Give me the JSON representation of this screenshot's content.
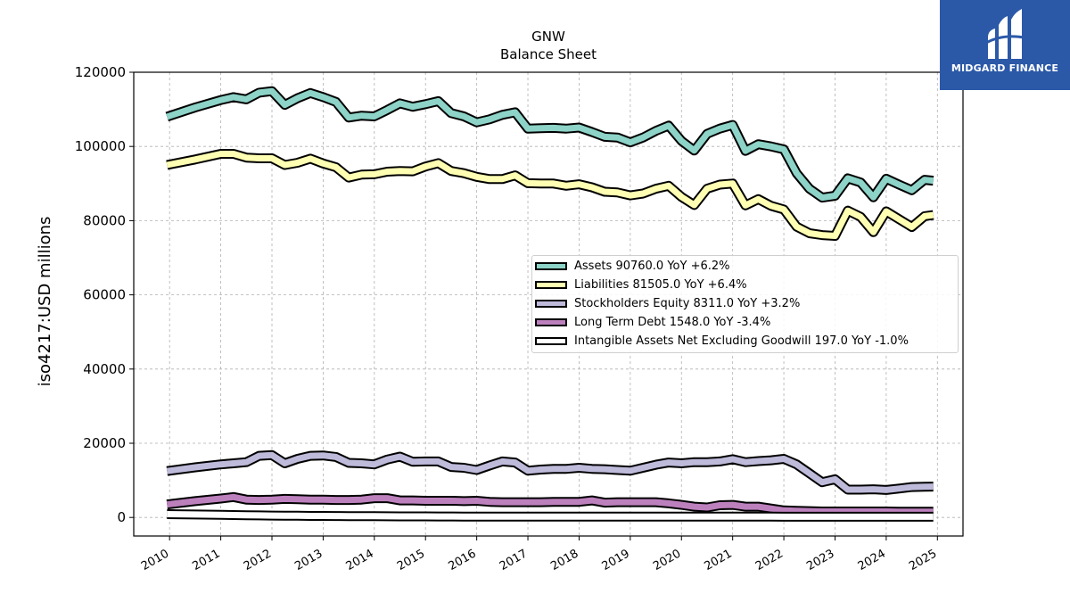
{
  "chart_data": {
    "type": "line",
    "title": "GNW",
    "subtitle": "Balance  Sheet",
    "ylabel": "iso4217:USD  millions",
    "xlabel": "",
    "xlim": [
      2009.3,
      2025.5
    ],
    "ylim": [
      -5000,
      120000
    ],
    "x_ticks": [
      2010,
      2011,
      2012,
      2013,
      2014,
      2015,
      2016,
      2017,
      2018,
      2019,
      2020,
      2021,
      2022,
      2023,
      2024,
      2025
    ],
    "y_ticks": [
      0,
      20000,
      40000,
      60000,
      80000,
      100000,
      120000
    ],
    "grid": true,
    "legend_position": "center-right",
    "x": [
      2009.95,
      2010.5,
      2011.0,
      2011.25,
      2011.5,
      2011.75,
      2012.0,
      2012.25,
      2012.5,
      2012.75,
      2013.0,
      2013.25,
      2013.5,
      2013.75,
      2014.0,
      2014.25,
      2014.5,
      2014.75,
      2015.0,
      2015.25,
      2015.5,
      2015.75,
      2016.0,
      2016.25,
      2016.5,
      2016.75,
      2017.0,
      2017.25,
      2017.5,
      2017.75,
      2018.0,
      2018.25,
      2018.5,
      2018.75,
      2019.0,
      2019.25,
      2019.5,
      2019.75,
      2020.0,
      2020.25,
      2020.5,
      2020.75,
      2021.0,
      2021.25,
      2021.5,
      2021.75,
      2022.0,
      2022.25,
      2022.5,
      2022.75,
      2023.0,
      2023.25,
      2023.5,
      2023.75,
      2024.0,
      2024.25,
      2024.5,
      2024.75,
      2024.92
    ],
    "series": [
      {
        "name": "Assets  90760.0 YoY +6.2%",
        "color": "#8dd3c7",
        "values": [
          108000,
          110500,
          112500,
          113300,
          112700,
          114500,
          114900,
          111200,
          113000,
          114400,
          113300,
          112000,
          107800,
          108300,
          108100,
          109800,
          111600,
          110700,
          111400,
          112200,
          109000,
          108100,
          106500,
          107300,
          108500,
          109200,
          104800,
          104900,
          105000,
          104800,
          105100,
          103900,
          102600,
          102400,
          101100,
          102400,
          104200,
          105600,
          101500,
          98900,
          103400,
          104800,
          105800,
          98800,
          100600,
          100000,
          99200,
          92800,
          88600,
          86200,
          86700,
          91400,
          90300,
          86300,
          91300,
          89700,
          88200,
          91000,
          90760
        ]
      },
      {
        "name": "Liabilities  81505.0 YoY +6.4%",
        "color": "#ffffb3",
        "values": [
          95000,
          96500,
          98000,
          98000,
          97000,
          96800,
          96800,
          95000,
          95600,
          96700,
          95400,
          94400,
          91600,
          92400,
          92500,
          93200,
          93400,
          93300,
          94600,
          95500,
          93400,
          92800,
          91800,
          91200,
          91200,
          92200,
          90100,
          90000,
          90000,
          89400,
          89800,
          89000,
          87800,
          87600,
          86800,
          87300,
          88600,
          89400,
          86400,
          84200,
          88600,
          89700,
          90000,
          84100,
          85800,
          84000,
          83000,
          78400,
          76600,
          76100,
          75900,
          82700,
          81000,
          76900,
          82500,
          80400,
          78300,
          81200,
          81505
        ]
      },
      {
        "name": "Stockholders Equity  8311.0 YoY +3.2%",
        "color": "#bebada",
        "values": [
          12500,
          13500,
          14300,
          14600,
          14900,
          16600,
          16800,
          14600,
          15800,
          16600,
          16700,
          16300,
          14700,
          14600,
          14300,
          15600,
          16400,
          15000,
          15100,
          15100,
          13600,
          13400,
          12800,
          14000,
          15100,
          14800,
          12600,
          12900,
          13100,
          13100,
          13400,
          13100,
          13000,
          12800,
          12600,
          13400,
          14200,
          14800,
          14600,
          14900,
          14900,
          15100,
          15700,
          14900,
          15200,
          15400,
          15800,
          14300,
          11900,
          9500,
          10300,
          7500,
          7500,
          7600,
          7400,
          7800,
          8200,
          8300,
          8311
        ]
      },
      {
        "name": "Long Term Debt  1548.0 YoY -3.4%",
        "color": "#bc80bd",
        "values": [
          3500,
          4400,
          5100,
          5500,
          4800,
          4700,
          4800,
          5000,
          4900,
          4800,
          4800,
          4700,
          4700,
          4800,
          5200,
          5200,
          4600,
          4600,
          4500,
          4500,
          4500,
          4400,
          4500,
          4200,
          4100,
          4100,
          4100,
          4100,
          4200,
          4200,
          4200,
          4600,
          4000,
          4100,
          4100,
          4100,
          4100,
          3800,
          3400,
          2900,
          2700,
          3300,
          3400,
          2900,
          2900,
          2400,
          1900,
          1800,
          1700,
          1600,
          1600,
          1600,
          1600,
          1600,
          1600,
          1550,
          1550,
          1550,
          1548
        ]
      },
      {
        "name": "Intangible Assets Net Excluding Goodwill  197.0 YoY -1.0%",
        "color": "#ffffff",
        "values": [
          900,
          800,
          700,
          650,
          600,
          550,
          500,
          450,
          450,
          400,
          400,
          380,
          350,
          350,
          330,
          320,
          300,
          300,
          280,
          270,
          260,
          250,
          250,
          240,
          230,
          230,
          220,
          220,
          220,
          210,
          210,
          210,
          210,
          210,
          210,
          210,
          210,
          210,
          205,
          205,
          205,
          205,
          205,
          205,
          205,
          205,
          200,
          200,
          200,
          200,
          200,
          200,
          200,
          200,
          200,
          199,
          198,
          197,
          197
        ]
      }
    ]
  },
  "brand": {
    "name": "MIDGARD FINANCE",
    "background": "#2b59a8"
  }
}
